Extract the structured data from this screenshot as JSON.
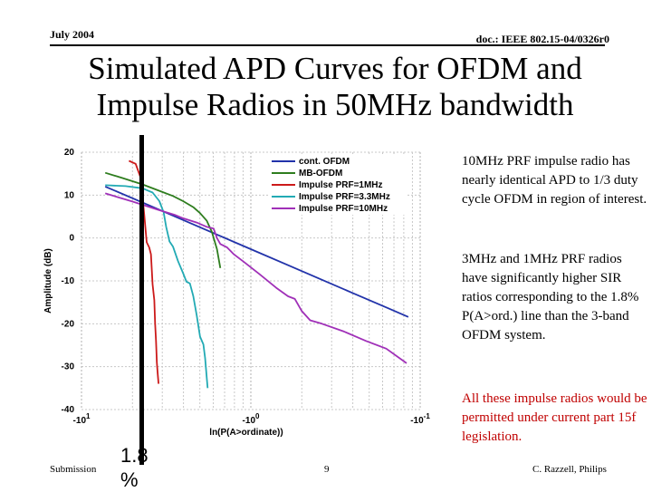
{
  "header": {
    "date": "July 2004",
    "doc": "doc.: IEEE 802.15-04/0326r0"
  },
  "title": {
    "line1": "Simulated APD Curves for OFDM and",
    "line2": "Impulse Radios in 50MHz bandwidth"
  },
  "notes": {
    "note1": "10MHz PRF impulse radio has nearly identical APD to 1/3 duty cycle OFDM in region of interest.",
    "note2": "3MHz and 1MHz PRF radios have significantly higher SIR ratios corresponding to the 1.8% P(A>ord.) line than the 3-band OFDM system.",
    "note3": "All these impulse radios would be permitted under current part 15f legislation."
  },
  "marker": {
    "value": "1.8",
    "unit": "%"
  },
  "footer": {
    "left": "Submission",
    "page": "9",
    "author": "C. Razzell, Philips"
  },
  "colors": {
    "cont_ofdm": "#2233aa",
    "mb_ofdm": "#2e7d1e",
    "prf1": "#cc1a1a",
    "prf33": "#22aab4",
    "prf10": "#a030b8",
    "grid": "#c8c8c8"
  },
  "chart_data": {
    "type": "line",
    "title": "",
    "xlabel": "ln(P(A>ordinate))",
    "ylabel": "Amplitude (dB)",
    "x_scale": "-log(-ln(P)) plotted with -10^1 at left, -10^-1 at right",
    "xlim": [
      1,
      -1
    ],
    "ylim": [
      -40,
      20
    ],
    "yticks": [
      "20",
      "10",
      "0",
      "-10",
      "-20",
      "-30",
      "-40"
    ],
    "xticks": [
      {
        "base": "-10",
        "exp": "1",
        "value": 1
      },
      {
        "base": "-10",
        "exp": "0",
        "value": 0
      },
      {
        "base": "-10",
        "exp": "-1",
        "value": -1
      }
    ],
    "legend": [
      "cont. OFDM",
      "MB-OFDM",
      "Impulse PRF=1MHz",
      "Impulse PRF=3.3MHz",
      "Impulse PRF=10MHz"
    ],
    "series": [
      {
        "name": "cont. OFDM",
        "color_key": "cont_ofdm",
        "points": [
          [
            0.86,
            12.0
          ],
          [
            0.6,
            7.6
          ],
          [
            0.4,
            4.2
          ],
          [
            0.2,
            0.8
          ],
          [
            0.0,
            -2.6
          ],
          [
            -0.2,
            -6.0
          ],
          [
            -0.4,
            -9.4
          ],
          [
            -0.6,
            -12.8
          ],
          [
            -0.8,
            -16.2
          ],
          [
            -0.93,
            -18.4
          ]
        ]
      },
      {
        "name": "MB-OFDM",
        "color_key": "mb_ofdm",
        "points": [
          [
            0.86,
            15.2
          ],
          [
            0.76,
            14.0
          ],
          [
            0.64,
            12.5
          ],
          [
            0.54,
            11.0
          ],
          [
            0.46,
            9.8
          ],
          [
            0.4,
            8.6
          ],
          [
            0.34,
            7.2
          ],
          [
            0.3,
            5.8
          ],
          [
            0.26,
            4.0
          ],
          [
            0.23,
            1.4
          ],
          [
            0.2,
            -2.6
          ],
          [
            0.18,
            -7.0
          ]
        ]
      },
      {
        "name": "Impulse PRF=1MHz",
        "color_key": "prf1",
        "points": [
          [
            0.72,
            18.0
          ],
          [
            0.68,
            17.3
          ],
          [
            0.65,
            14.0
          ],
          [
            0.63,
            5.6
          ],
          [
            0.615,
            -1.0
          ],
          [
            0.6,
            -2.2
          ],
          [
            0.59,
            -3.8
          ],
          [
            0.58,
            -10.8
          ],
          [
            0.57,
            -14.5
          ],
          [
            0.565,
            -20.0
          ],
          [
            0.56,
            -24.0
          ],
          [
            0.555,
            -29.0
          ],
          [
            0.55,
            -31.5
          ],
          [
            0.545,
            -34.0
          ]
        ]
      },
      {
        "name": "Impulse PRF=3.3MHz",
        "color_key": "prf33",
        "points": [
          [
            0.86,
            12.3
          ],
          [
            0.74,
            12.1
          ],
          [
            0.64,
            11.6
          ],
          [
            0.58,
            10.6
          ],
          [
            0.54,
            8.6
          ],
          [
            0.515,
            6.0
          ],
          [
            0.5,
            2.6
          ],
          [
            0.48,
            -0.8
          ],
          [
            0.46,
            -2.0
          ],
          [
            0.43,
            -5.4
          ],
          [
            0.4,
            -8.2
          ],
          [
            0.38,
            -10.2
          ],
          [
            0.36,
            -10.6
          ],
          [
            0.34,
            -13.5
          ],
          [
            0.32,
            -18.0
          ],
          [
            0.3,
            -23.0
          ],
          [
            0.28,
            -24.8
          ],
          [
            0.27,
            -28.0
          ],
          [
            0.26,
            -32.8
          ],
          [
            0.255,
            -35.0
          ]
        ]
      },
      {
        "name": "Impulse PRF=10MHz",
        "color_key": "prf10",
        "points": [
          [
            0.86,
            10.4
          ],
          [
            0.7,
            8.5
          ],
          [
            0.55,
            6.6
          ],
          [
            0.45,
            5.4
          ],
          [
            0.4,
            4.6
          ],
          [
            0.32,
            3.6
          ],
          [
            0.26,
            2.6
          ],
          [
            0.22,
            2.2
          ],
          [
            0.2,
            0.0
          ],
          [
            0.18,
            -1.4
          ],
          [
            0.14,
            -2.2
          ],
          [
            0.1,
            -3.8
          ],
          [
            0.04,
            -5.6
          ],
          [
            -0.05,
            -8.4
          ],
          [
            -0.15,
            -11.6
          ],
          [
            -0.22,
            -13.6
          ],
          [
            -0.26,
            -14.2
          ],
          [
            -0.3,
            -17.0
          ],
          [
            -0.35,
            -19.2
          ],
          [
            -0.42,
            -20.0
          ],
          [
            -0.55,
            -21.8
          ],
          [
            -0.68,
            -24.0
          ],
          [
            -0.8,
            -25.8
          ],
          [
            -0.92,
            -29.2
          ]
        ]
      }
    ]
  }
}
